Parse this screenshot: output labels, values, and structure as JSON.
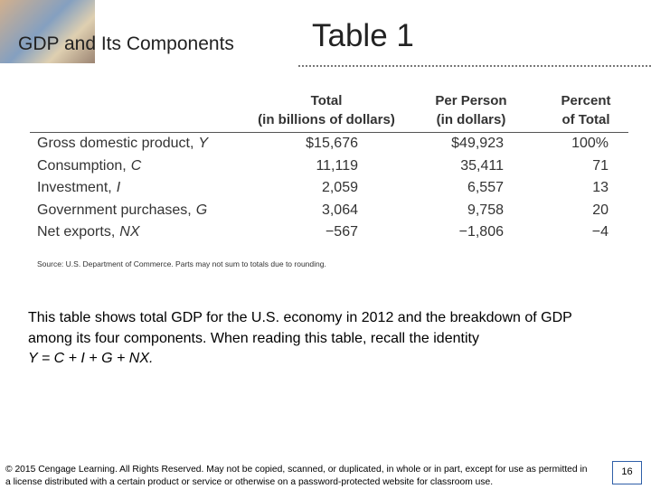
{
  "header": {
    "title": "GDP and Its Components",
    "table_label": "Table 1"
  },
  "table": {
    "columns": [
      {
        "line1": "Total",
        "line2": "(in billions of dollars)"
      },
      {
        "line1": "Per Person",
        "line2": "(in dollars)"
      },
      {
        "line1": "Percent",
        "line2": "of Total"
      }
    ],
    "rows": [
      {
        "label": "Gross domestic product,",
        "symbol": "Y",
        "cells": [
          "$15,676",
          "$49,923",
          "100%"
        ]
      },
      {
        "label": "Consumption,",
        "symbol": "C",
        "cells": [
          "11,119",
          "35,411",
          "71"
        ]
      },
      {
        "label": "Investment,",
        "symbol": "I",
        "cells": [
          "2,059",
          "6,557",
          "13"
        ]
      },
      {
        "label": "Government purchases,",
        "symbol": "G",
        "cells": [
          "3,064",
          "9,758",
          "20"
        ]
      },
      {
        "label": "Net exports,",
        "symbol": "NX",
        "cells": [
          "−567",
          "−1,806",
          "−4"
        ]
      }
    ],
    "source": "Source: U.S. Department of Commerce. Parts may not sum to totals due to rounding."
  },
  "body": {
    "text": "This table shows total GDP for the U.S. economy in 2012 and the breakdown of GDP among its four components. When reading this table, recall the identity",
    "identity": "Y = C + I + G + NX."
  },
  "footer": {
    "copyright": "© 2015 Cengage Learning. All Rights Reserved. May not be copied, scanned, or duplicated, in whole or in part, except for use as permitted in a license distributed with a certain product or service or otherwise on a password-protected website for classroom use.",
    "page": "16"
  }
}
